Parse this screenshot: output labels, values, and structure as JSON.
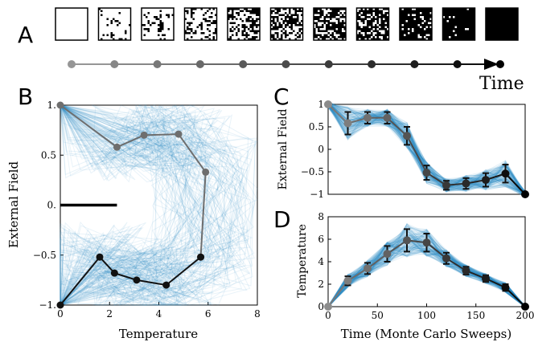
{
  "panels": {
    "A": {
      "letter": "A",
      "time_label": "Time",
      "snapshot_count": 11,
      "snapshot_black_fraction": [
        0.0,
        0.1,
        0.2,
        0.3,
        0.45,
        0.55,
        0.65,
        0.75,
        0.85,
        0.95,
        1.0
      ],
      "timeline_point_count": 11
    },
    "B": {
      "letter": "B"
    },
    "C": {
      "letter": "C"
    },
    "D": {
      "letter": "D"
    }
  },
  "colors": {
    "trace_blue": "#2b8cc4",
    "gray_path": "#6e6e6e",
    "black_path": "#111111"
  },
  "chart_data": [
    {
      "panel": "B",
      "type": "line",
      "xlabel": "Temperature",
      "ylabel": "External Field",
      "xlim": [
        0,
        8
      ],
      "ylim": [
        -1,
        1
      ],
      "xticks": [
        "0",
        "2",
        "4",
        "6",
        "8"
      ],
      "yticks": [
        "1.",
        "0.5",
        "0.",
        "−0.5",
        "−1."
      ],
      "series": [
        {
          "x": [
            0,
            2.3,
            3.4,
            4.8,
            5.9,
            5.7,
            4.3,
            3.1,
            2.2,
            1.6,
            0
          ],
          "y": [
            1,
            0.58,
            0.7,
            0.71,
            0.33,
            -0.52,
            -0.8,
            -0.75,
            -0.68,
            -0.52,
            -1
          ]
        },
        {
          "x": [
            0,
            1.6,
            2.2,
            3.1,
            4.3,
            5.7,
            5.9,
            4.8,
            3.4,
            2.3,
            0
          ],
          "y": [
            -1,
            -0.52,
            -0.68,
            -0.75,
            -0.8,
            -0.52,
            0.33,
            0.71,
            0.7,
            0.58,
            1
          ]
        }
      ],
      "annotations": [
        {
          "type": "hline",
          "y": 0,
          "x_from": 0,
          "x_to": 2.3
        }
      ]
    },
    {
      "panel": "C",
      "type": "line",
      "xlabel": "",
      "ylabel": "External Field",
      "xlim": [
        0,
        200
      ],
      "ylim": [
        -1,
        1
      ],
      "yticks": [
        "1",
        "0.5",
        "0",
        "−0.5",
        "−1"
      ],
      "series": [
        {
          "x": [
            0,
            20,
            40,
            60,
            80,
            100,
            120,
            140,
            160,
            180,
            200
          ],
          "y": [
            1,
            0.58,
            0.7,
            0.7,
            0.3,
            -0.52,
            -0.8,
            -0.76,
            -0.68,
            -0.54,
            -1
          ],
          "err": [
            0,
            0.25,
            0.13,
            0.13,
            0.2,
            0.16,
            0.1,
            0.12,
            0.15,
            0.2,
            0
          ]
        }
      ]
    },
    {
      "panel": "D",
      "type": "line",
      "xlabel": "Time (Monte Carlo Sweeps)",
      "ylabel": "Temperature",
      "xlim": [
        0,
        200
      ],
      "ylim": [
        0,
        8
      ],
      "xticks": [
        "0",
        "50",
        "100",
        "150",
        "200"
      ],
      "yticks": [
        "8",
        "6",
        "4",
        "2",
        "0"
      ],
      "series": [
        {
          "x": [
            0,
            20,
            40,
            60,
            80,
            100,
            120,
            140,
            160,
            180,
            200
          ],
          "y": [
            0,
            2.3,
            3.4,
            4.7,
            5.9,
            5.7,
            4.3,
            3.2,
            2.5,
            1.7,
            0
          ],
          "err": [
            0,
            0.4,
            0.5,
            0.7,
            1.0,
            0.8,
            0.5,
            0.35,
            0.3,
            0.3,
            0
          ]
        }
      ]
    }
  ]
}
